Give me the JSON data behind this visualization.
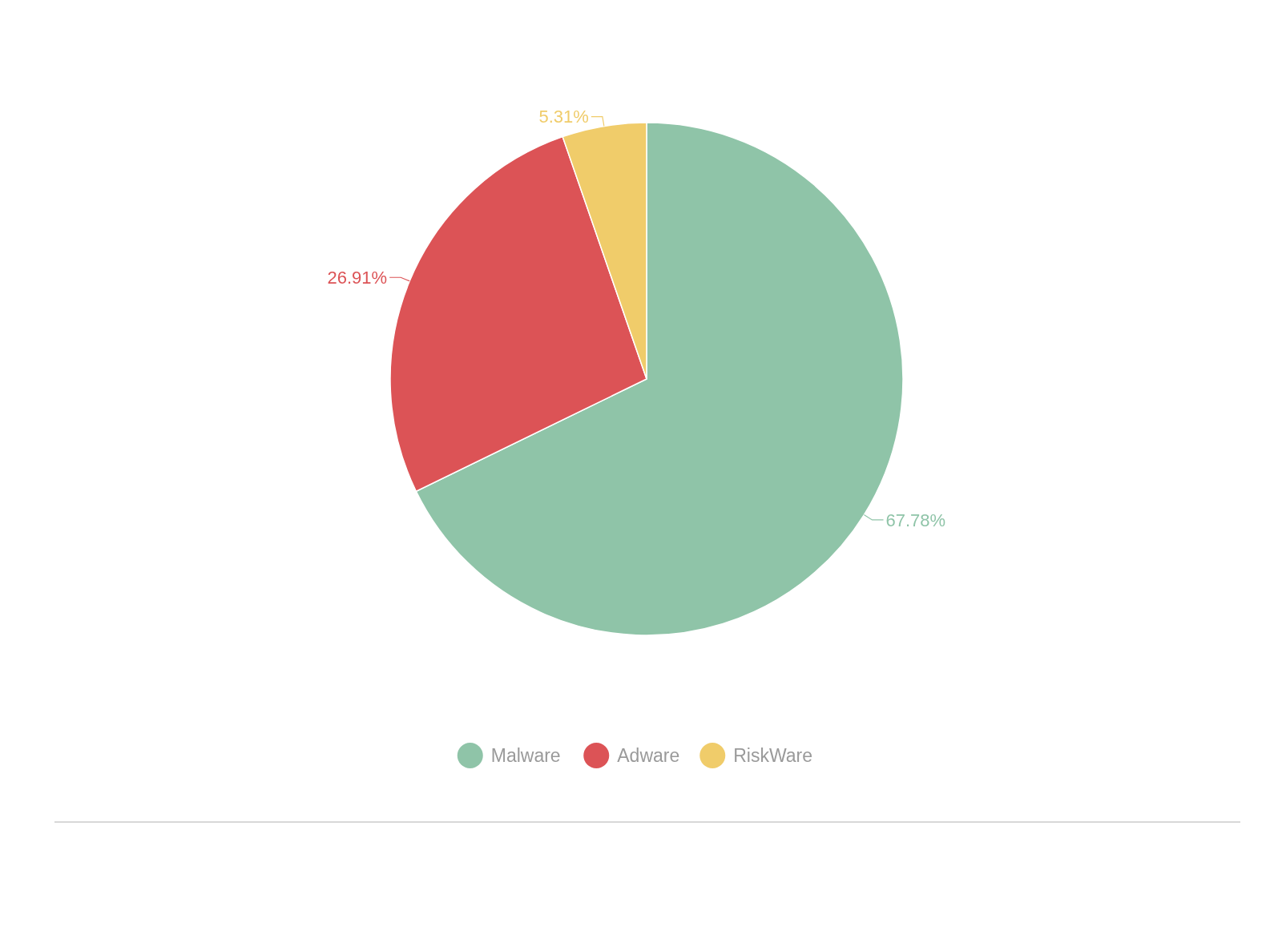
{
  "chart_data": {
    "type": "pie",
    "categories": [
      "Malware",
      "Adware",
      "RiskWare"
    ],
    "values": [
      67.78,
      26.91,
      5.31
    ],
    "colors": [
      "#8fc4a8",
      "#dc5356",
      "#f0cc6a"
    ],
    "value_labels": [
      "67.78%",
      "26.91%",
      "5.31%"
    ],
    "legend": "bottom"
  }
}
